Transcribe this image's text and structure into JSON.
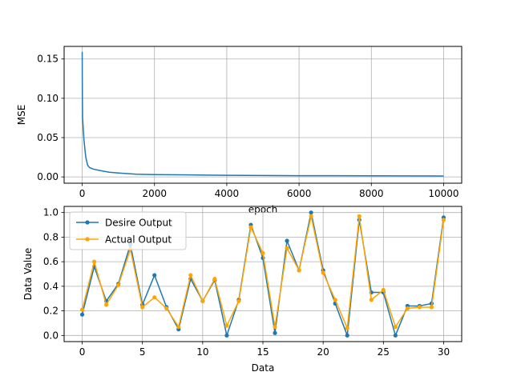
{
  "chart_data": [
    {
      "type": "line",
      "title": "",
      "xlabel": "epoch",
      "ylabel": "MSE",
      "xlim": [
        -500,
        10500
      ],
      "ylim": [
        -0.008,
        0.166
      ],
      "xticks": [
        0,
        2000,
        4000,
        6000,
        8000,
        10000
      ],
      "xtick_labels": [
        "0",
        "2000",
        "4000",
        "6000",
        "8000",
        "10000"
      ],
      "yticks": [
        0.0,
        0.05,
        0.1,
        0.15
      ],
      "ytick_labels": [
        "0.00",
        "0.05",
        "0.10",
        "0.15"
      ],
      "grid": true,
      "series": [
        {
          "color": "#1f77b4",
          "x": [
            0,
            2,
            5,
            10,
            20,
            30,
            50,
            75,
            100,
            150,
            200,
            300,
            500,
            750,
            1000,
            1500,
            2000,
            3000,
            4000,
            5000,
            6000,
            7000,
            8000,
            9000,
            10000
          ],
          "y": [
            0.159,
            0.13,
            0.1,
            0.075,
            0.068,
            0.06,
            0.047,
            0.035,
            0.025,
            0.015,
            0.012,
            0.01,
            0.008,
            0.006,
            0.005,
            0.0035,
            0.003,
            0.0025,
            0.002,
            0.0018,
            0.0016,
            0.0015,
            0.0014,
            0.0013,
            0.0012
          ]
        }
      ]
    },
    {
      "type": "line",
      "title": "",
      "xlabel": "Data",
      "ylabel": "Data Value",
      "xlim": [
        -1.5,
        31.5
      ],
      "ylim": [
        -0.05,
        1.05
      ],
      "xticks": [
        0,
        5,
        10,
        15,
        20,
        25,
        30
      ],
      "xtick_labels": [
        "0",
        "5",
        "10",
        "15",
        "20",
        "25",
        "30"
      ],
      "yticks": [
        0.0,
        0.2,
        0.4,
        0.6,
        0.8,
        1.0
      ],
      "ytick_labels": [
        "0.0",
        "0.2",
        "0.4",
        "0.6",
        "0.8",
        "1.0"
      ],
      "grid": true,
      "legend_position": "upper-left",
      "x": [
        0,
        1,
        2,
        3,
        4,
        5,
        6,
        7,
        8,
        9,
        10,
        11,
        12,
        13,
        14,
        15,
        16,
        17,
        18,
        19,
        20,
        21,
        22,
        23,
        24,
        25,
        26,
        27,
        28,
        29,
        30
      ],
      "series": [
        {
          "name": "Desire Output",
          "color": "#1f77b4",
          "values": [
            0.17,
            0.56,
            0.28,
            0.42,
            0.74,
            0.25,
            0.49,
            0.23,
            0.05,
            0.46,
            0.28,
            0.45,
            0.0,
            0.29,
            0.9,
            0.63,
            0.02,
            0.77,
            0.53,
            1.0,
            0.53,
            0.26,
            0.0,
            0.94,
            0.35,
            0.35,
            0.0,
            0.24,
            0.24,
            0.26,
            0.96
          ]
        },
        {
          "name": "Actual Output",
          "color": "#ffa500",
          "values": [
            0.21,
            0.6,
            0.25,
            0.41,
            0.7,
            0.23,
            0.31,
            0.22,
            0.07,
            0.49,
            0.28,
            0.46,
            0.08,
            0.28,
            0.88,
            0.67,
            0.07,
            0.71,
            0.53,
            0.97,
            0.51,
            0.29,
            0.06,
            0.97,
            0.29,
            0.37,
            0.07,
            0.22,
            0.23,
            0.23,
            0.94
          ]
        }
      ]
    }
  ]
}
